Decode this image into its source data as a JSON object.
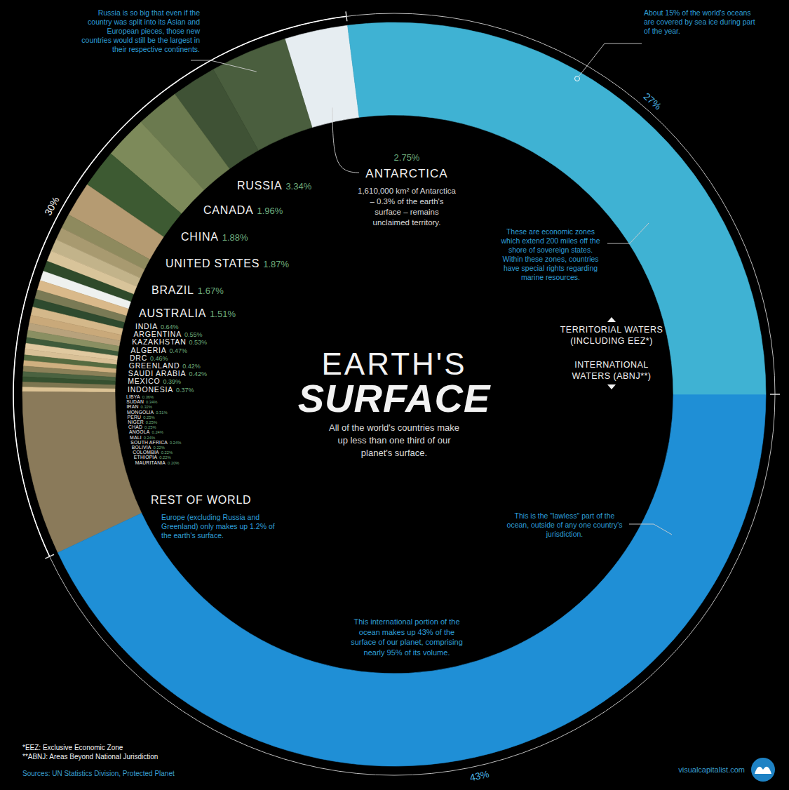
{
  "chart_data": {
    "type": "donut",
    "title": "EARTH'S SURFACE",
    "subtitle": "All of the world's countries make up less than one third of our planet's surface.",
    "categories": [
      "ANTARCTICA",
      "RUSSIA",
      "CANADA",
      "CHINA",
      "UNITED STATES",
      "BRAZIL",
      "AUSTRALIA",
      "INDIA",
      "ARGENTINA",
      "KAZAKHSTAN",
      "ALGERIA",
      "DRC",
      "GREENLAND",
      "SAUDI ARABIA",
      "MEXICO",
      "INDONESIA",
      "LIBYA",
      "SUDAN",
      "IRAN",
      "MONGOLIA",
      "PERU",
      "NIGER",
      "CHAD",
      "ANGOLA",
      "MALI",
      "SOUTH AFRICA",
      "BOLIVIA",
      "COLOMBIA",
      "ETHIOPIA",
      "MAURITANIA",
      "REST OF WORLD",
      "INTERNATIONAL WATERS (ABNJ**)",
      "TERRITORIAL WATERS (INCLUDING EEZ*)"
    ],
    "values": [
      2.75,
      3.34,
      1.96,
      1.88,
      1.87,
      1.67,
      1.51,
      0.64,
      0.55,
      0.53,
      0.47,
      0.46,
      0.42,
      0.42,
      0.39,
      0.37,
      0.36,
      0.34,
      0.32,
      0.31,
      0.25,
      0.25,
      0.25,
      0.24,
      0.24,
      0.24,
      0.22,
      0.22,
      0.22,
      0.2,
      7.11,
      43,
      27
    ],
    "value_labels": [
      "2.75%",
      "3.34%",
      "1.96%",
      "1.88%",
      "1.87%",
      "1.67%",
      "1.51%",
      "0.64%",
      "0.55%",
      "0.53%",
      "0.47%",
      "0.46%",
      "0.42%",
      "0.42%",
      "0.39%",
      "0.37%",
      "0.36%",
      "0.34%",
      "0.32%",
      "0.31%",
      "0.25%",
      "0.25%",
      "0.25%",
      "0.24%",
      "0.24%",
      "0.24%",
      "0.22%",
      "0.22%",
      "0.22%",
      "0.20%",
      null,
      "43%",
      "27%"
    ],
    "data_labels": true,
    "colors": [
      "#e6edf1",
      "#4a5e3e",
      "#3f5235",
      "#6b7a4f",
      "#7d8a5a",
      "#3d5a32",
      "#b59b72",
      "#8e8a5e",
      "#a89a70",
      "#c2b38a",
      "#d8c49a",
      "#2f4a2a",
      "#eef1ef",
      "#d9b98a",
      "#7a7a55",
      "#2e4a2e",
      "#d4b88a",
      "#c9a97a",
      "#b8a27c",
      "#8a8f62",
      "#3e5a3a",
      "#e0c9a0",
      "#d8c096",
      "#566b40",
      "#cfb080",
      "#8a8058",
      "#4a6240",
      "#35502f",
      "#7d7650",
      "#dcc395",
      "#8a7a5a",
      "#1f8fd6",
      "#3fb2d3"
    ],
    "land_total": {
      "value": 30,
      "label": "30%"
    },
    "annotations": [
      "Russia is so big that even if the country was split into its Asian and European pieces, those new countries would still be the largest in their respective continents.",
      "About 15% of the world's oceans are covered by sea ice during part of the year.",
      "1,610,000 km² of Antarctica – 0.3% of the earth's surface – remains unclaimed territory.",
      "These are economic zones which extend 200 miles off the shore of sovereign states. Within these zones, countries have special rights regarding marine resources.",
      "This is the \"lawless\" part of the ocean, outside of any one country's jurisdiction.",
      "This international portion of the ocean makes up 43% of the surface of our planet, comprising nearly 95% of its volume.",
      "Europe (excluding Russia and Greenland) only makes up 1.2% of the earth's surface."
    ],
    "footnotes": [
      "*EEZ: Exclusive Economic Zone",
      "**ABNJ: Areas Beyond National Jurisdiction"
    ],
    "source": "Sources: UN Statistics Division, Protected Planet",
    "credit": "visualcapitalist.com"
  }
}
